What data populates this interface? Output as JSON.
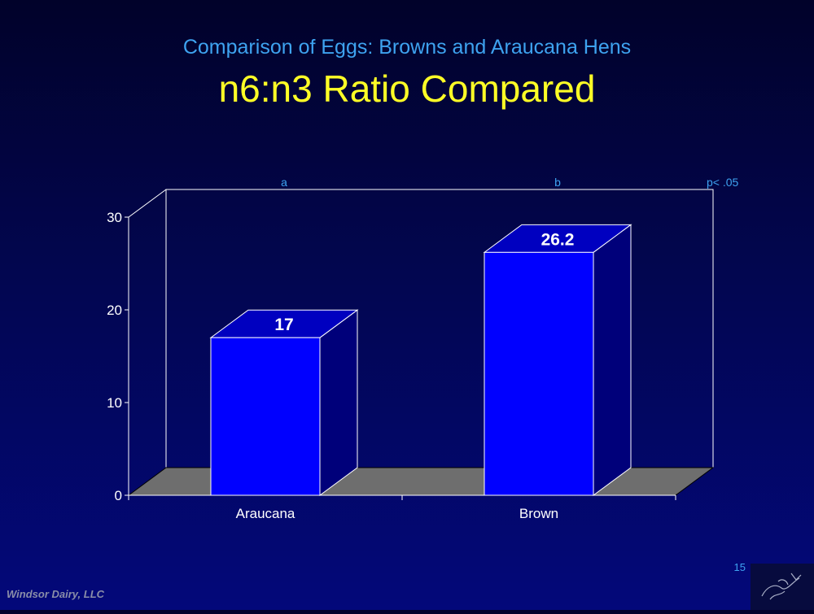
{
  "slide": {
    "subtitle": "Comparison of Eggs: Browns and Araucana Hens",
    "title": "n6:n3 Ratio Compared",
    "footer": "Windsor Dairy, LLC",
    "page_number": "15"
  },
  "colors": {
    "bar_front": "#0000ff",
    "bar_side": "#00007a",
    "bar_top": "#0000c0",
    "floor": "#6e6e6e",
    "axis": "#ffffff",
    "subtitle": "#3ea3f0",
    "title": "#ffff26"
  },
  "chart_data": {
    "type": "bar",
    "categories": [
      "Araucana",
      "Brown"
    ],
    "values": [
      17,
      26.2
    ],
    "data_labels": [
      "17",
      "26.2"
    ],
    "significance_letters": [
      "a",
      "b"
    ],
    "annotation": "p< .05",
    "yticks": [
      "0",
      "10",
      "20",
      "30"
    ],
    "ylim": [
      0,
      30
    ],
    "legend": "none",
    "style": "3d"
  }
}
